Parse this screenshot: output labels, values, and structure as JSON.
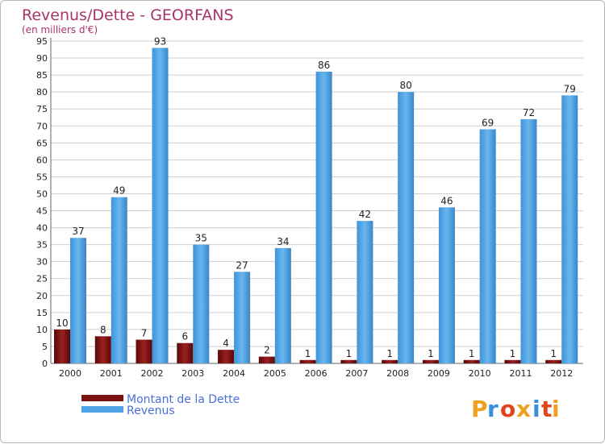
{
  "chart_data": {
    "type": "bar",
    "title": "Revenus/Dette - GEORFANS",
    "subtitle": "(en milliers d'€)",
    "categories": [
      "2000",
      "2001",
      "2002",
      "2003",
      "2004",
      "2005",
      "2006",
      "2007",
      "2008",
      "2009",
      "2010",
      "2011",
      "2012"
    ],
    "series": [
      {
        "name": "Montant de la Dette",
        "color": "#7a1010",
        "values": [
          10,
          8,
          7,
          6,
          4,
          2,
          1,
          1,
          1,
          1,
          1,
          1,
          1
        ]
      },
      {
        "name": "Revenus",
        "color": "#4ea3e6",
        "values": [
          37,
          49,
          93,
          35,
          27,
          34,
          86,
          42,
          80,
          46,
          69,
          72,
          79
        ]
      }
    ],
    "ylim": [
      0,
      95
    ],
    "yticks": [
      0,
      5,
      10,
      15,
      20,
      25,
      30,
      35,
      40,
      45,
      50,
      55,
      60,
      65,
      70,
      75,
      80,
      85,
      90,
      95
    ],
    "grid": true,
    "legend_position": "bottom-left"
  },
  "logo": {
    "letters": [
      "P",
      "r",
      "o",
      "x",
      "i",
      "t",
      "i"
    ],
    "colors": [
      "#f0a020",
      "#3a8fd8",
      "#e0461e",
      "#f0a020",
      "#3a8fd8",
      "#e0461e",
      "#f0a020"
    ]
  }
}
